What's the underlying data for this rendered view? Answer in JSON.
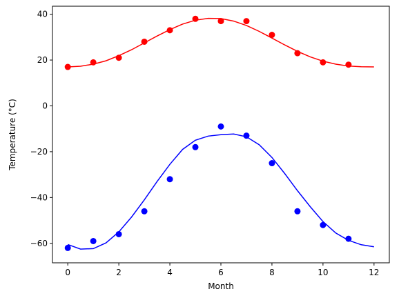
{
  "chart_data": {
    "type": "scatter",
    "xlabel": "Month",
    "ylabel": "Temperature (°C)",
    "xlim": [
      -0.6,
      12.6
    ],
    "ylim": [
      -68.5,
      43.5
    ],
    "xticks": [
      0,
      2,
      4,
      6,
      8,
      10,
      12
    ],
    "yticks": [
      -60,
      -40,
      -20,
      0,
      20,
      40
    ],
    "grid": false,
    "series": [
      {
        "color": "#ff0000",
        "points": {
          "x": [
            0,
            1,
            2,
            3,
            4,
            5,
            6,
            7,
            8,
            9,
            10,
            11
          ],
          "y": [
            17,
            19,
            21,
            28,
            33,
            38,
            37,
            37,
            31,
            23,
            19,
            18
          ]
        },
        "fit_curve": {
          "x": [
            0,
            0.5,
            1,
            1.5,
            2,
            2.5,
            3,
            3.5,
            4,
            4.5,
            5,
            5.5,
            6,
            6.5,
            7,
            7.5,
            8,
            8.5,
            9,
            9.5,
            10,
            10.5,
            11,
            11.5,
            12
          ],
          "y": [
            17,
            17.3,
            18.2,
            19.7,
            21.9,
            24.5,
            27.5,
            30.5,
            33.3,
            35.7,
            37.4,
            38.2,
            38.1,
            37.0,
            35.1,
            32.5,
            29.6,
            26.6,
            23.8,
            21.4,
            19.5,
            18.2,
            17.4,
            17.1,
            17
          ]
        }
      },
      {
        "color": "#0000ff",
        "points": {
          "x": [
            0,
            1,
            2,
            3,
            4,
            5,
            6,
            7,
            8,
            9,
            10,
            11
          ],
          "y": [
            -62,
            -59,
            -56,
            -46,
            -32,
            -18,
            -9,
            -13,
            -25,
            -46,
            -52,
            -58
          ]
        },
        "fit_curve": {
          "x": [
            0,
            0.5,
            1,
            1.5,
            2,
            2.5,
            3,
            3.5,
            4,
            4.5,
            5,
            5.5,
            6,
            6.5,
            7,
            7.5,
            8,
            8.5,
            9,
            9.5,
            10,
            10.5,
            11,
            11.5,
            12
          ],
          "y": [
            -60.5,
            -62.5,
            -62.3,
            -59.8,
            -55.0,
            -48.5,
            -41.0,
            -33.0,
            -25.5,
            -19.0,
            -15.0,
            -13.2,
            -12.6,
            -12.3,
            -13.5,
            -17.0,
            -22.5,
            -29.5,
            -37.0,
            -44.0,
            -50.5,
            -55.5,
            -58.7,
            -60.6,
            -61.5
          ]
        }
      }
    ]
  }
}
